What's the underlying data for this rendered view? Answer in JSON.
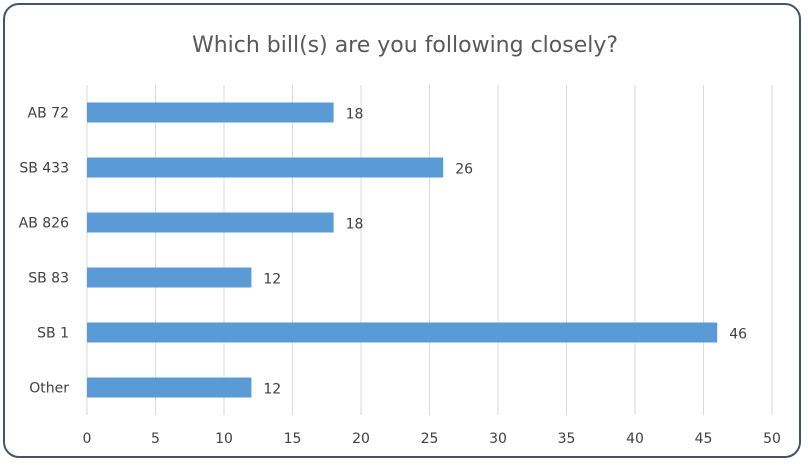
{
  "chart_data": {
    "type": "bar",
    "orientation": "horizontal",
    "title": "Which bill(s) are you following closely?",
    "categories": [
      "AB 72",
      "SB 433",
      "AB 826",
      "SB 83",
      "SB 1",
      "Other"
    ],
    "values": [
      18,
      26,
      18,
      12,
      46,
      12
    ],
    "xlim": [
      0,
      50
    ],
    "xticks": [
      0,
      5,
      10,
      15,
      20,
      25,
      30,
      35,
      40,
      45,
      50
    ],
    "grid": true,
    "legend": "none",
    "bar_color": "#5b9bd5",
    "data_labels": true
  }
}
